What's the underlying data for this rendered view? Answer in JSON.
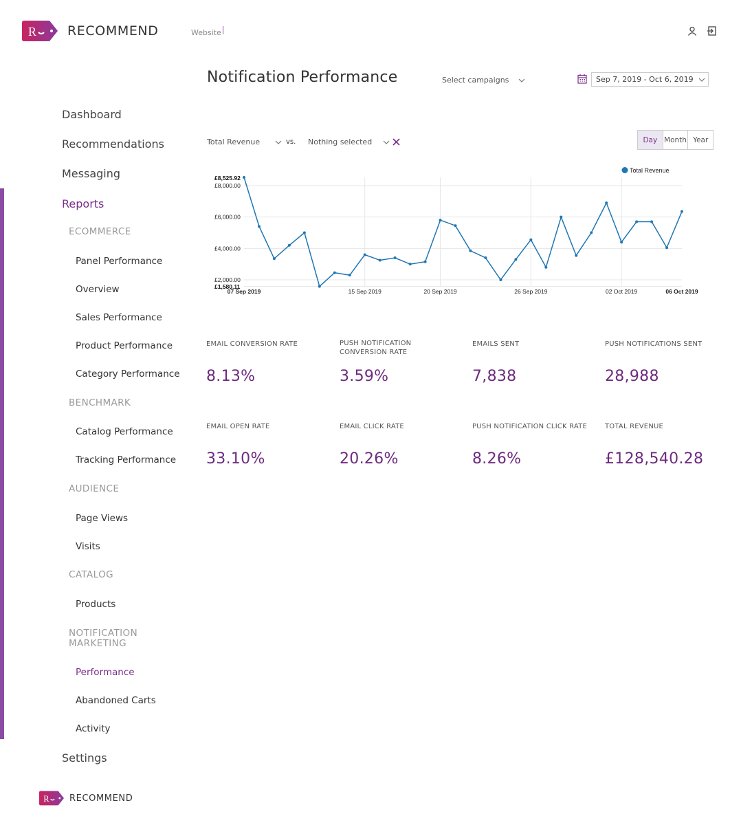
{
  "brand": {
    "name": "RECOMMEND",
    "logo_letter": "R",
    "accent_color": "#8a4ba6",
    "text_accent": "#7a2f8b",
    "logo_gradient": [
      "#c8245f",
      "#8a3a9c"
    ]
  },
  "header": {
    "site_label": "Website",
    "icons": [
      "user-icon",
      "logout-icon"
    ]
  },
  "sidebar": {
    "items": [
      {
        "label": "Dashboard"
      },
      {
        "label": "Recommendations"
      },
      {
        "label": "Messaging"
      },
      {
        "label": "Reports",
        "active": true
      }
    ],
    "sections": {
      "ecommerce": {
        "title": "ECOMMERCE",
        "items": [
          "Panel Performance",
          "Overview",
          "Sales Performance",
          "Product Performance",
          "Category Performance"
        ]
      },
      "benchmark": {
        "title": "BENCHMARK",
        "items": [
          "Catalog Performance",
          "Tracking Performance"
        ]
      },
      "audience": {
        "title": "AUDIENCE",
        "items": [
          "Page Views",
          "Visits"
        ]
      },
      "catalog": {
        "title": "CATALOG",
        "items": [
          "Products"
        ]
      },
      "notification": {
        "title_line1": "NOTIFICATION",
        "title_line2": "MARKETING",
        "items": [
          "Performance",
          "Abandoned Carts",
          "Activity"
        ],
        "active_item": "Performance"
      }
    },
    "settings_label": "Settings"
  },
  "main": {
    "title": "Notification Performance",
    "campaign_select": "Select campaigns",
    "date_range": "Sep 7, 2019 - Oct 6, 2019",
    "metric_select": "Total Revenue",
    "vs_label": "vs.",
    "compare_select": "Nothing selected",
    "periods": [
      "Day",
      "Month",
      "Year"
    ],
    "active_period": "Day"
  },
  "chart_data": {
    "type": "line",
    "series": [
      {
        "name": "Total Revenue",
        "color": "#1f77b4",
        "values": [
          8525.92,
          5400,
          3350,
          4200,
          5000,
          1580.11,
          2450,
          2300,
          3600,
          3250,
          3400,
          3000,
          3150,
          5800,
          5450,
          3850,
          3400,
          2000,
          3300,
          4550,
          2800,
          6000,
          3550,
          5000,
          6900,
          4400,
          5700,
          5700,
          4050,
          6350
        ]
      }
    ],
    "x_start": "07 Sep 2019",
    "x_labels": [
      "07 Sep 2019",
      "15 Sep 2019",
      "20 Sep 2019",
      "26 Sep 2019",
      "02 Oct 2019",
      "06 Oct 2019"
    ],
    "y_labels": [
      "£8,000.00",
      "£6,000.00",
      "£4,000.00",
      "£2,000.00"
    ],
    "max_label": "£8,525.92",
    "min_label": "£1,580.11",
    "ylim": [
      1580.11,
      8525.92
    ],
    "grid": true,
    "legend": "top-right"
  },
  "stats": [
    {
      "label": "EMAIL CONVERSION RATE",
      "value": "8.13%"
    },
    {
      "label": "PUSH NOTIFICATION CONVERSION RATE",
      "value": "3.59%"
    },
    {
      "label": "EMAILS SENT",
      "value": "7,838"
    },
    {
      "label": "PUSH NOTIFICATIONS SENT",
      "value": "28,988"
    },
    {
      "label": "EMAIL OPEN RATE",
      "value": "33.10%"
    },
    {
      "label": "EMAIL CLICK RATE",
      "value": "20.26%"
    },
    {
      "label": "PUSH NOTIFICATION CLICK RATE",
      "value": "8.26%"
    },
    {
      "label": "TOTAL REVENUE",
      "value": "£128,540.28"
    }
  ]
}
